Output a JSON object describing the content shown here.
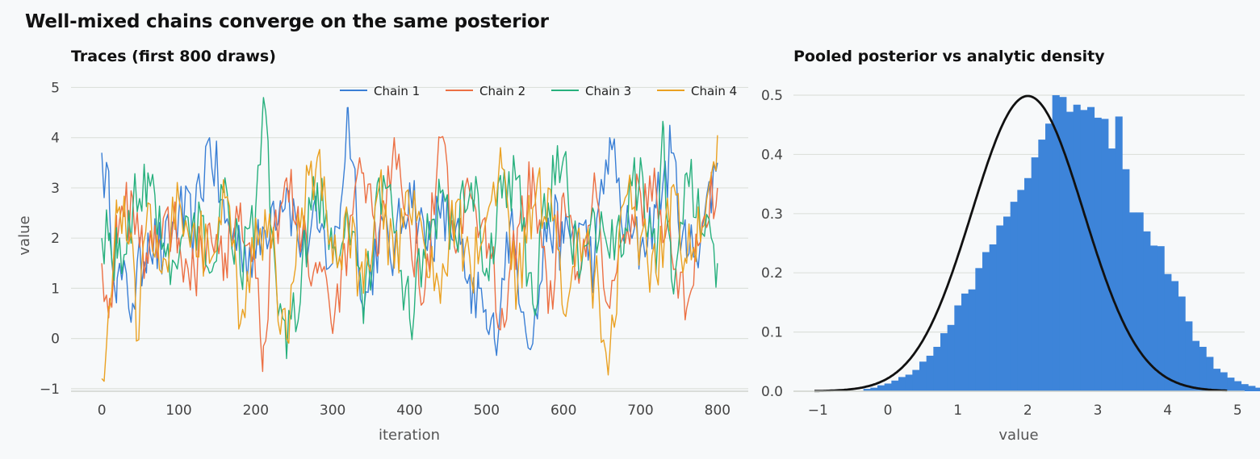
{
  "figure": {
    "suptitle": "Well-mixed chains converge on the same posterior"
  },
  "chart_data": [
    {
      "type": "line",
      "title": "Traces (first 800 draws)",
      "xlabel": "iteration",
      "ylabel": "value",
      "xlim": [
        -40,
        840
      ],
      "ylim": [
        -1.05,
        5.2
      ],
      "xticks": [
        0,
        100,
        200,
        300,
        400,
        500,
        600,
        700,
        800
      ],
      "yticks": [
        -1,
        0,
        1,
        2,
        3,
        4,
        5
      ],
      "grid": "horizontal",
      "legend_position": "top-right",
      "series": [
        {
          "name": "Chain 1",
          "color": "#3a7fd5",
          "x": [
            0,
            10,
            20,
            40,
            60,
            80,
            100,
            120,
            140,
            160,
            180,
            200,
            220,
            240,
            260,
            280,
            300,
            310,
            320,
            330,
            340,
            360,
            380,
            400,
            420,
            440,
            460,
            480,
            490,
            500,
            510,
            520,
            530,
            560,
            580,
            600,
            620,
            640,
            660,
            680,
            700,
            720,
            740,
            760,
            780,
            800
          ],
          "values": [
            3.7,
            2.6,
            1.2,
            0.7,
            2.1,
            1.6,
            2.5,
            2.2,
            4.0,
            2.3,
            1.9,
            1.6,
            2.6,
            3.0,
            1.8,
            2.2,
            1.5,
            2.6,
            4.6,
            2.9,
            0.5,
            2.1,
            1.7,
            3.1,
            1.9,
            2.4,
            2.2,
            0.5,
            1.0,
            0.2,
            0.0,
            1.2,
            2.2,
            -0.1,
            2.4,
            1.9,
            2.3,
            1.5,
            4.0,
            2.1,
            1.8,
            2.6,
            3.7,
            1.6,
            2.2,
            3.5
          ]
        },
        {
          "name": "Chain 2",
          "color": "#ec7044",
          "x": [
            0,
            10,
            20,
            40,
            60,
            80,
            100,
            120,
            140,
            160,
            180,
            200,
            210,
            220,
            240,
            260,
            280,
            300,
            320,
            340,
            360,
            380,
            400,
            420,
            440,
            460,
            480,
            500,
            520,
            540,
            560,
            580,
            600,
            620,
            640,
            660,
            680,
            700,
            720,
            740,
            760,
            780,
            800
          ],
          "values": [
            1.5,
            0.8,
            1.9,
            2.8,
            1.5,
            2.4,
            2.0,
            1.4,
            2.3,
            1.7,
            2.7,
            1.2,
            -0.15,
            1.8,
            3.2,
            2.0,
            1.3,
            0.1,
            1.9,
            3.3,
            1.7,
            4.0,
            2.2,
            1.0,
            4.0,
            1.7,
            2.8,
            1.6,
            0.6,
            2.2,
            3.4,
            0.5,
            2.9,
            1.1,
            3.3,
            0.6,
            1.9,
            2.9,
            3.0,
            1.7,
            0.6,
            2.3,
            3.0
          ]
        },
        {
          "name": "Chain 3",
          "color": "#27b07d",
          "x": [
            0,
            10,
            20,
            40,
            60,
            80,
            100,
            120,
            140,
            160,
            180,
            200,
            210,
            220,
            240,
            260,
            280,
            300,
            320,
            340,
            360,
            380,
            400,
            420,
            440,
            460,
            480,
            500,
            520,
            540,
            560,
            580,
            600,
            620,
            640,
            660,
            680,
            700,
            720,
            730,
            740,
            760,
            780,
            800
          ],
          "values": [
            2.0,
            2.1,
            1.6,
            2.5,
            3.3,
            1.9,
            1.6,
            2.5,
            1.3,
            3.2,
            1.3,
            2.6,
            4.8,
            2.2,
            -0.4,
            1.4,
            3.1,
            1.8,
            2.4,
            0.3,
            3.2,
            2.1,
            0.4,
            1.6,
            2.9,
            2.0,
            3.1,
            1.4,
            2.8,
            3.2,
            0.7,
            2.7,
            3.6,
            1.2,
            2.5,
            1.6,
            2.2,
            3.6,
            1.3,
            4.2,
            1.2,
            3.3,
            2.1,
            1.5
          ]
        },
        {
          "name": "Chain 4",
          "color": "#eaa122",
          "x": [
            0,
            10,
            20,
            40,
            45,
            60,
            80,
            100,
            120,
            140,
            160,
            180,
            200,
            220,
            240,
            260,
            280,
            300,
            320,
            340,
            360,
            380,
            400,
            420,
            440,
            460,
            480,
            500,
            520,
            540,
            560,
            580,
            600,
            620,
            640,
            660,
            680,
            700,
            720,
            740,
            760,
            780,
            800
          ],
          "values": [
            -0.8,
            0.6,
            2.5,
            1.9,
            -0.05,
            2.7,
            1.6,
            2.8,
            2.3,
            1.5,
            2.8,
            0.3,
            2.4,
            1.8,
            0.0,
            2.6,
            3.6,
            1.5,
            2.2,
            0.9,
            3.0,
            1.4,
            2.5,
            1.8,
            0.7,
            2.7,
            1.2,
            2.4,
            3.4,
            1.0,
            2.6,
            3.0,
            0.5,
            2.2,
            1.2,
            -0.3,
            2.8,
            2.0,
            1.3,
            3.0,
            1.5,
            2.2,
            4.05
          ]
        }
      ]
    },
    {
      "type": "bar",
      "title": "Pooled posterior vs analytic density",
      "xlabel": "value",
      "ylabel": "",
      "xlim": [
        -1.35,
        5.1
      ],
      "ylim": [
        0,
        0.53
      ],
      "xticks": [
        -1,
        0,
        1,
        2,
        3,
        4,
        5
      ],
      "yticks": [
        0.0,
        0.1,
        0.2,
        0.3,
        0.4,
        0.5
      ],
      "grid": "horizontal",
      "bin_width": 0.1,
      "bin_start": -0.35,
      "hist_color": "#3d84d9",
      "hist_values": [
        0.004,
        0.006,
        0.01,
        0.013,
        0.018,
        0.024,
        0.028,
        0.036,
        0.05,
        0.06,
        0.075,
        0.098,
        0.112,
        0.145,
        0.165,
        0.172,
        0.208,
        0.235,
        0.248,
        0.28,
        0.295,
        0.32,
        0.34,
        0.36,
        0.395,
        0.425,
        0.452,
        0.5,
        0.497,
        0.472,
        0.484,
        0.475,
        0.48,
        0.462,
        0.46,
        0.41,
        0.464,
        0.375,
        0.302,
        0.302,
        0.27,
        0.246,
        0.245,
        0.198,
        0.186,
        0.16,
        0.118,
        0.085,
        0.075,
        0.058,
        0.038,
        0.032,
        0.023,
        0.017,
        0.012,
        0.009,
        0.006,
        0.004,
        0.003
      ],
      "density": {
        "name": "analytic density",
        "type": "normal",
        "mean": 2.0,
        "sd": 0.8,
        "x_range": [
          -1.05,
          4.85
        ],
        "color": "#111111"
      }
    }
  ]
}
